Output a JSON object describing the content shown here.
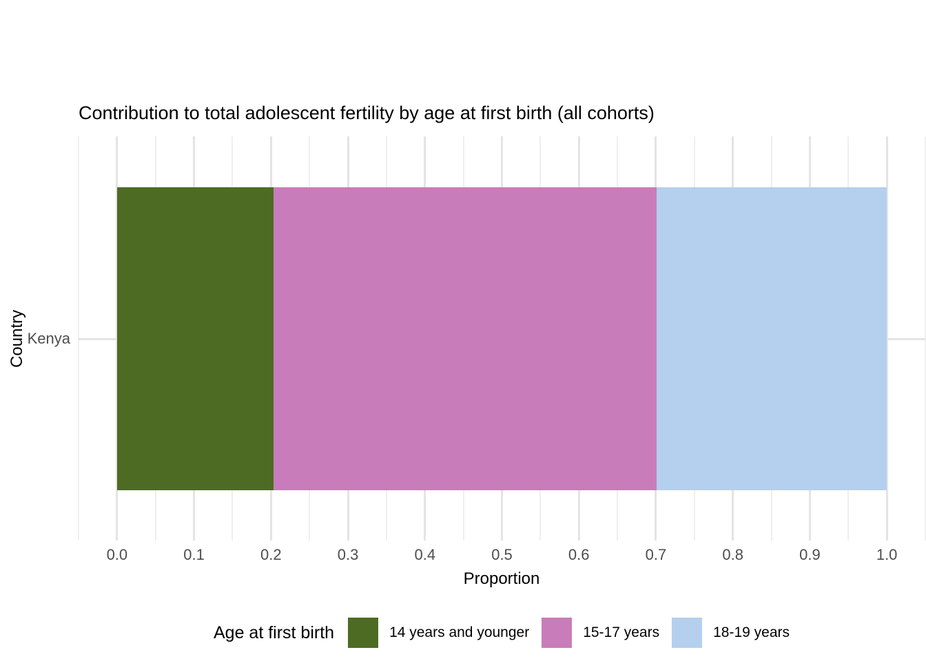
{
  "title": "Contribution to total adolescent fertility by age at first birth (all cohorts)",
  "chart_data": {
    "type": "bar",
    "orientation": "horizontal",
    "stacked": true,
    "title": "Contribution to total adolescent fertility by age at first birth (all cohorts)",
    "xlabel": "Proportion",
    "ylabel": "Country",
    "categories": [
      "Kenya"
    ],
    "series": [
      {
        "name": "14 years and younger",
        "color": "#4D6B23",
        "values": [
          0.203
        ]
      },
      {
        "name": "15-17 years",
        "color": "#C87CBA",
        "values": [
          0.498
        ]
      },
      {
        "name": "18-19 years",
        "color": "#B5CFEE",
        "values": [
          0.299
        ]
      }
    ],
    "xlim": [
      -0.05,
      1.05
    ],
    "x_ticks": [
      {
        "v": 0.0,
        "label": "0.0"
      },
      {
        "v": 0.1,
        "label": "0.1"
      },
      {
        "v": 0.2,
        "label": "0.2"
      },
      {
        "v": 0.3,
        "label": "0.3"
      },
      {
        "v": 0.4,
        "label": "0.4"
      },
      {
        "v": 0.5,
        "label": "0.5"
      },
      {
        "v": 0.6,
        "label": "0.6"
      },
      {
        "v": 0.7,
        "label": "0.7"
      },
      {
        "v": 0.8,
        "label": "0.8"
      },
      {
        "v": 0.9,
        "label": "0.9"
      },
      {
        "v": 1.0,
        "label": "1.0"
      }
    ],
    "x_minor_ticks": [
      -0.05,
      0.05,
      0.15,
      0.25,
      0.35,
      0.45,
      0.55,
      0.65,
      0.75,
      0.85,
      0.95,
      1.05
    ],
    "grid": {
      "vertical_major": true,
      "vertical_minor": true,
      "horizontal_major": true
    },
    "legend": {
      "title": "Age at first birth",
      "position": "bottom"
    }
  },
  "colors": {
    "background": "#ffffff",
    "grid_major": "#e4e4e4",
    "grid_minor": "#efefef",
    "tick_text": "#4d4d4d",
    "title_text": "#000000"
  }
}
